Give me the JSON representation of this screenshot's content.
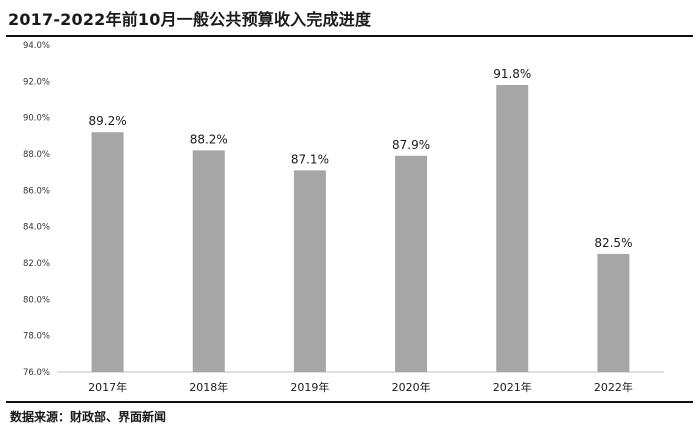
{
  "title": "2017-2022年前10月一般公共预算收入完成进度",
  "source": "数据来源：财政部、界面新闻",
  "colors": {
    "bar": "#a6a6a6",
    "axis": "#bfbfbf",
    "text": "#1a1a1a"
  },
  "chart_data": {
    "type": "bar",
    "categories": [
      "2017年",
      "2018年",
      "2019年",
      "2020年",
      "2021年",
      "2022年"
    ],
    "values": [
      89.2,
      88.2,
      87.1,
      87.9,
      91.8,
      82.5
    ],
    "data_labels": [
      "89.2%",
      "88.2%",
      "87.1%",
      "87.9%",
      "91.8%",
      "82.5%"
    ],
    "ylim": [
      76,
      94
    ],
    "y_ticks": [
      76,
      78,
      80,
      82,
      84,
      86,
      88,
      90,
      92,
      94
    ],
    "y_tick_labels": [
      "76.0%",
      "78.0%",
      "80.0%",
      "82.0%",
      "84.0%",
      "86.0%",
      "88.0%",
      "90.0%",
      "92.0%",
      "94.0%"
    ],
    "grid": false,
    "legend": "none",
    "xlabel": "",
    "ylabel": ""
  }
}
